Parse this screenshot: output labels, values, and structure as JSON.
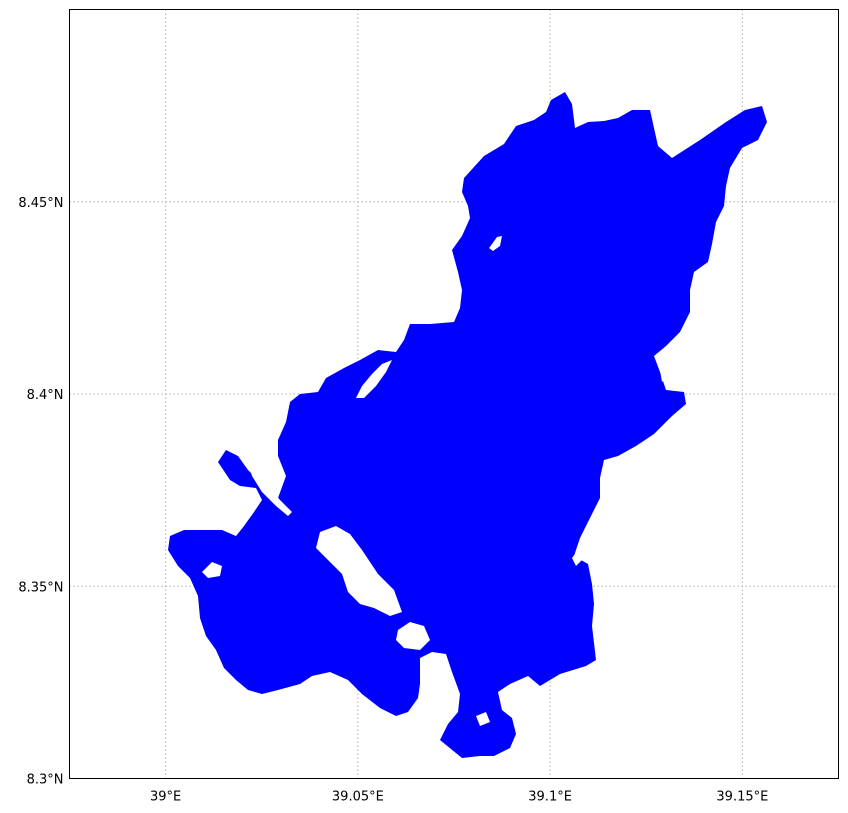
{
  "map": {
    "type": "geographic-raster-map",
    "fill_color": "#0000ff",
    "background_color": "#ffffff",
    "grid": "dotted",
    "grid_color": "#b0b0b0",
    "x_ticks": [
      {
        "value": 39.0,
        "label": "39°E"
      },
      {
        "value": 39.05,
        "label": "39.05°E"
      },
      {
        "value": 39.1,
        "label": "39.1°E"
      },
      {
        "value": 39.15,
        "label": "39.15°E"
      }
    ],
    "y_ticks": [
      {
        "value": 8.3,
        "label": "8.3°N"
      },
      {
        "value": 8.35,
        "label": "8.35°N"
      },
      {
        "value": 8.4,
        "label": "8.4°N"
      },
      {
        "value": 8.45,
        "label": "8.45°N"
      }
    ],
    "lon_range": [
      38.975,
      39.175
    ],
    "lat_range": [
      8.3,
      8.5
    ]
  }
}
